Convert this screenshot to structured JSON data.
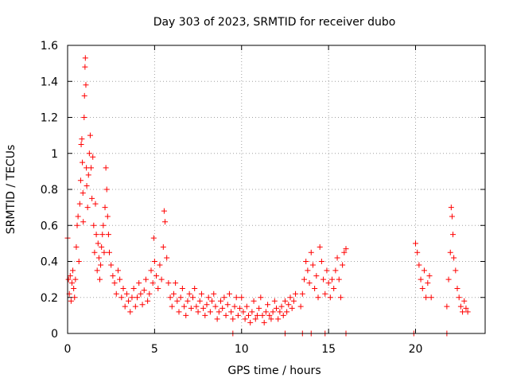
{
  "chart_data": {
    "type": "scatter",
    "title": "Day 303 of 2023, SRMTID for receiver dubo",
    "xlabel": "GPS time / hours",
    "ylabel": "SRMTID / TECUs",
    "xlim": [
      0,
      24
    ],
    "ylim": [
      0,
      1.6
    ],
    "x_ticks": [
      0,
      5,
      10,
      15,
      20
    ],
    "x_tick_labels": [
      "0",
      "5",
      "10",
      "15",
      "20"
    ],
    "y_ticks": [
      0,
      0.2,
      0.4,
      0.6,
      0.8,
      1.0,
      1.2,
      1.4,
      1.6
    ],
    "y_tick_labels": [
      "0",
      "0.2",
      "0.4",
      "0.6",
      "0.8",
      "1",
      "1.2",
      "1.4",
      "1.6"
    ],
    "grid": true,
    "marker": "plus",
    "color": "#ff0000",
    "series": [
      {
        "name": "SRMTID",
        "points": [
          [
            0.0,
            0.53
          ],
          [
            0.05,
            0.3
          ],
          [
            0.1,
            0.22
          ],
          [
            0.15,
            0.32
          ],
          [
            0.2,
            0.18
          ],
          [
            0.25,
            0.28
          ],
          [
            0.3,
            0.35
          ],
          [
            0.35,
            0.25
          ],
          [
            0.4,
            0.2
          ],
          [
            0.45,
            0.3
          ],
          [
            0.5,
            0.48
          ],
          [
            0.55,
            0.6
          ],
          [
            0.6,
            0.65
          ],
          [
            0.65,
            0.4
          ],
          [
            0.7,
            0.72
          ],
          [
            0.75,
            0.85
          ],
          [
            0.78,
            1.05
          ],
          [
            0.82,
            1.08
          ],
          [
            0.85,
            0.95
          ],
          [
            0.88,
            0.78
          ],
          [
            0.9,
            0.62
          ],
          [
            0.95,
            1.2
          ],
          [
            0.97,
            1.32
          ],
          [
            1.0,
            1.48
          ],
          [
            1.02,
            1.53
          ],
          [
            1.05,
            1.38
          ],
          [
            1.08,
            0.92
          ],
          [
            1.1,
            0.82
          ],
          [
            1.15,
            0.7
          ],
          [
            1.2,
            0.88
          ],
          [
            1.25,
            1.0
          ],
          [
            1.3,
            1.1
          ],
          [
            1.35,
            0.92
          ],
          [
            1.4,
            0.75
          ],
          [
            1.45,
            0.98
          ],
          [
            1.5,
            0.6
          ],
          [
            1.55,
            0.45
          ],
          [
            1.6,
            0.72
          ],
          [
            1.65,
            0.55
          ],
          [
            1.7,
            0.35
          ],
          [
            1.75,
            0.5
          ],
          [
            1.8,
            0.42
          ],
          [
            1.85,
            0.3
          ],
          [
            1.9,
            0.38
          ],
          [
            1.95,
            0.48
          ],
          [
            2.0,
            0.55
          ],
          [
            2.05,
            0.6
          ],
          [
            2.1,
            0.45
          ],
          [
            2.15,
            0.7
          ],
          [
            2.2,
            0.92
          ],
          [
            2.25,
            0.8
          ],
          [
            2.3,
            0.65
          ],
          [
            2.35,
            0.55
          ],
          [
            2.4,
            0.45
          ],
          [
            2.5,
            0.38
          ],
          [
            2.6,
            0.32
          ],
          [
            2.7,
            0.28
          ],
          [
            2.8,
            0.22
          ],
          [
            2.9,
            0.35
          ],
          [
            3.0,
            0.3
          ],
          [
            3.1,
            0.2
          ],
          [
            3.2,
            0.25
          ],
          [
            3.3,
            0.15
          ],
          [
            3.4,
            0.22
          ],
          [
            3.5,
            0.18
          ],
          [
            3.6,
            0.12
          ],
          [
            3.7,
            0.2
          ],
          [
            3.8,
            0.25
          ],
          [
            3.9,
            0.15
          ],
          [
            4.0,
            0.2
          ],
          [
            4.1,
            0.28
          ],
          [
            4.2,
            0.22
          ],
          [
            4.3,
            0.16
          ],
          [
            4.4,
            0.24
          ],
          [
            4.5,
            0.3
          ],
          [
            4.6,
            0.18
          ],
          [
            4.7,
            0.22
          ],
          [
            4.8,
            0.35
          ],
          [
            4.9,
            0.28
          ],
          [
            5.0,
            0.4
          ],
          [
            4.95,
            0.53
          ],
          [
            5.1,
            0.32
          ],
          [
            5.2,
            0.25
          ],
          [
            5.3,
            0.38
          ],
          [
            5.4,
            0.3
          ],
          [
            5.5,
            0.48
          ],
          [
            5.55,
            0.68
          ],
          [
            5.6,
            0.62
          ],
          [
            5.7,
            0.42
          ],
          [
            5.8,
            0.28
          ],
          [
            5.9,
            0.2
          ],
          [
            6.0,
            0.15
          ],
          [
            6.1,
            0.22
          ],
          [
            6.2,
            0.28
          ],
          [
            6.3,
            0.18
          ],
          [
            6.4,
            0.12
          ],
          [
            6.5,
            0.2
          ],
          [
            6.6,
            0.25
          ],
          [
            6.7,
            0.15
          ],
          [
            6.8,
            0.1
          ],
          [
            6.9,
            0.18
          ],
          [
            7.0,
            0.22
          ],
          [
            7.1,
            0.14
          ],
          [
            7.2,
            0.2
          ],
          [
            7.3,
            0.25
          ],
          [
            7.4,
            0.15
          ],
          [
            7.5,
            0.12
          ],
          [
            7.6,
            0.18
          ],
          [
            7.7,
            0.22
          ],
          [
            7.8,
            0.14
          ],
          [
            7.9,
            0.1
          ],
          [
            8.0,
            0.16
          ],
          [
            8.1,
            0.2
          ],
          [
            8.2,
            0.12
          ],
          [
            8.3,
            0.18
          ],
          [
            8.4,
            0.22
          ],
          [
            8.5,
            0.15
          ],
          [
            8.6,
            0.08
          ],
          [
            8.7,
            0.12
          ],
          [
            8.8,
            0.18
          ],
          [
            8.9,
            0.14
          ],
          [
            9.0,
            0.2
          ],
          [
            9.1,
            0.1
          ],
          [
            9.2,
            0.16
          ],
          [
            9.3,
            0.22
          ],
          [
            9.4,
            0.12
          ],
          [
            9.5,
            0.08
          ],
          [
            9.6,
            0.15
          ],
          [
            9.7,
            0.2
          ],
          [
            9.8,
            0.1
          ],
          [
            9.9,
            0.14
          ],
          [
            10.0,
            0.2
          ],
          [
            10.1,
            0.12
          ],
          [
            10.2,
            0.08
          ],
          [
            10.3,
            0.15
          ],
          [
            10.4,
            0.1
          ],
          [
            10.5,
            0.06
          ],
          [
            10.6,
            0.12
          ],
          [
            10.7,
            0.18
          ],
          [
            10.8,
            0.08
          ],
          [
            10.9,
            0.1
          ],
          [
            11.0,
            0.14
          ],
          [
            11.1,
            0.2
          ],
          [
            11.2,
            0.1
          ],
          [
            11.3,
            0.06
          ],
          [
            11.4,
            0.12
          ],
          [
            11.5,
            0.16
          ],
          [
            11.6,
            0.1
          ],
          [
            11.7,
            0.08
          ],
          [
            11.8,
            0.12
          ],
          [
            11.9,
            0.18
          ],
          [
            12.0,
            0.14
          ],
          [
            12.1,
            0.08
          ],
          [
            12.2,
            0.12
          ],
          [
            12.3,
            0.15
          ],
          [
            12.4,
            0.1
          ],
          [
            12.5,
            0.18
          ],
          [
            12.6,
            0.12
          ],
          [
            12.7,
            0.16
          ],
          [
            12.8,
            0.2
          ],
          [
            12.9,
            0.14
          ],
          [
            13.0,
            0.18
          ],
          [
            13.1,
            0.22
          ],
          [
            13.4,
            0.15
          ],
          [
            13.5,
            0.22
          ],
          [
            13.6,
            0.3
          ],
          [
            13.7,
            0.4
          ],
          [
            13.8,
            0.35
          ],
          [
            13.9,
            0.28
          ],
          [
            14.0,
            0.45
          ],
          [
            14.1,
            0.38
          ],
          [
            14.2,
            0.25
          ],
          [
            14.3,
            0.32
          ],
          [
            14.4,
            0.2
          ],
          [
            14.5,
            0.48
          ],
          [
            14.6,
            0.4
          ],
          [
            14.7,
            0.3
          ],
          [
            14.8,
            0.22
          ],
          [
            14.9,
            0.35
          ],
          [
            15.0,
            0.28
          ],
          [
            15.1,
            0.2
          ],
          [
            15.2,
            0.3
          ],
          [
            15.3,
            0.25
          ],
          [
            15.4,
            0.35
          ],
          [
            15.5,
            0.42
          ],
          [
            15.6,
            0.3
          ],
          [
            15.7,
            0.2
          ],
          [
            15.8,
            0.38
          ],
          [
            15.9,
            0.45
          ],
          [
            16.0,
            0.47
          ],
          [
            20.0,
            0.5
          ],
          [
            20.1,
            0.45
          ],
          [
            20.2,
            0.38
          ],
          [
            20.3,
            0.3
          ],
          [
            20.4,
            0.25
          ],
          [
            20.5,
            0.35
          ],
          [
            20.6,
            0.2
          ],
          [
            20.7,
            0.28
          ],
          [
            20.8,
            0.32
          ],
          [
            20.9,
            0.2
          ],
          [
            21.8,
            0.15
          ],
          [
            21.9,
            0.3
          ],
          [
            22.0,
            0.45
          ],
          [
            22.05,
            0.7
          ],
          [
            22.1,
            0.65
          ],
          [
            22.15,
            0.55
          ],
          [
            22.2,
            0.42
          ],
          [
            22.3,
            0.35
          ],
          [
            22.4,
            0.25
          ],
          [
            22.5,
            0.2
          ],
          [
            22.6,
            0.15
          ],
          [
            22.7,
            0.12
          ],
          [
            22.8,
            0.18
          ],
          [
            22.9,
            0.14
          ],
          [
            23.0,
            0.12
          ],
          [
            9.5,
            0.0
          ],
          [
            12.5,
            0.0
          ],
          [
            13.5,
            0.0
          ],
          [
            14.0,
            0.0
          ],
          [
            14.8,
            0.0
          ],
          [
            16.0,
            0.0
          ],
          [
            19.9,
            0.0
          ],
          [
            21.8,
            0.0
          ]
        ]
      }
    ]
  }
}
